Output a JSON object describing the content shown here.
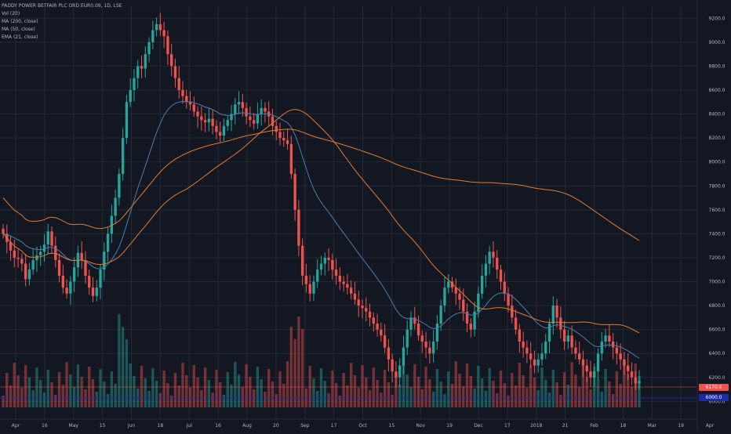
{
  "legend": {
    "title": "PADDY POWER BETFAIR PLC ORD EUR0.09, 1D, LSE",
    "vol": "Vol (20)",
    "ma200": "MA (200, close)",
    "ma50": "MA (50, close)",
    "ema21": "EMA (21, close)"
  },
  "price_tags": {
    "last": "6170.0",
    "level": "6000.0"
  },
  "colors": {
    "background": "#131722",
    "grid": "#262a36",
    "up": "#26a69a",
    "down": "#ef5350",
    "ma200": "#e07b33",
    "ma50": "#e07b33",
    "ema21": "#4a7fb0",
    "level_line": "#1e2aa8"
  },
  "chart_data": {
    "type": "candlestick",
    "y_ticks": [
      "9200.0",
      "9000.0",
      "8800.0",
      "8600.0",
      "8400.0",
      "8200.0",
      "8000.0",
      "7800.0",
      "7600.0",
      "7400.0",
      "7200.0",
      "7000.0",
      "6800.0",
      "6600.0",
      "6400.0",
      "6200.0",
      "6000.0"
    ],
    "ylim": [
      5950,
      9300
    ],
    "x_ticks": [
      "Apr",
      "16",
      "May",
      "15",
      "Jun",
      "18",
      "Jul",
      "16",
      "Aug",
      "20",
      "Sep",
      "17",
      "Oct",
      "15",
      "Nov",
      "19",
      "Dec",
      "17",
      "2018",
      "21",
      "Feb",
      "18",
      "Mar",
      "19",
      "Apr"
    ],
    "series_names": [
      "Vol (20)",
      "MA (200, close)",
      "MA (50, close)",
      "EMA (21, close)"
    ],
    "closes": [
      7400,
      7330,
      7260,
      7200,
      7190,
      7150,
      7020,
      7100,
      7180,
      7220,
      7250,
      7310,
      7420,
      7300,
      7180,
      7050,
      6950,
      6900,
      7000,
      7120,
      7240,
      7180,
      7050,
      6950,
      6880,
      6950,
      7100,
      7250,
      7400,
      7550,
      7700,
      7900,
      8200,
      8500,
      8600,
      8700,
      8800,
      8780,
      8900,
      9000,
      9100,
      9150,
      9100,
      9050,
      8900,
      8800,
      8700,
      8600,
      8550,
      8500,
      8480,
      8420,
      8380,
      8350,
      8330,
      8360,
      8300,
      8250,
      8220,
      8300,
      8350,
      8400,
      8480,
      8500,
      8450,
      8380,
      8350,
      8320,
      8400,
      8450,
      8420,
      8380,
      8300,
      8250,
      8200,
      8180,
      8150,
      7900,
      7600,
      7300,
      7050,
      6980,
      6900,
      7000,
      7100,
      7150,
      7200,
      7180,
      7100,
      7050,
      7000,
      6980,
      6950,
      6900,
      6850,
      6800,
      6780,
      6750,
      6700,
      6650,
      6600,
      6550,
      6450,
      6350,
      6250,
      6200,
      6300,
      6450,
      6600,
      6700,
      6650,
      6550,
      6500,
      6450,
      6400,
      6500,
      6650,
      6800,
      6950,
      7000,
      6950,
      6900,
      6850,
      6750,
      6650,
      6600,
      6750,
      6900,
      7050,
      7150,
      7250,
      7200,
      7100,
      7000,
      6900,
      6800,
      6700,
      6600,
      6500,
      6450,
      6400,
      6350,
      6300,
      6350,
      6400,
      6500,
      6650,
      6800,
      6700,
      6600,
      6500,
      6550,
      6450,
      6400,
      6350,
      6300,
      6250,
      6200,
      6250,
      6400,
      6500,
      6550,
      6500,
      6450,
      6400,
      6350,
      6300,
      6250,
      6200,
      6150,
      6170
    ]
  }
}
